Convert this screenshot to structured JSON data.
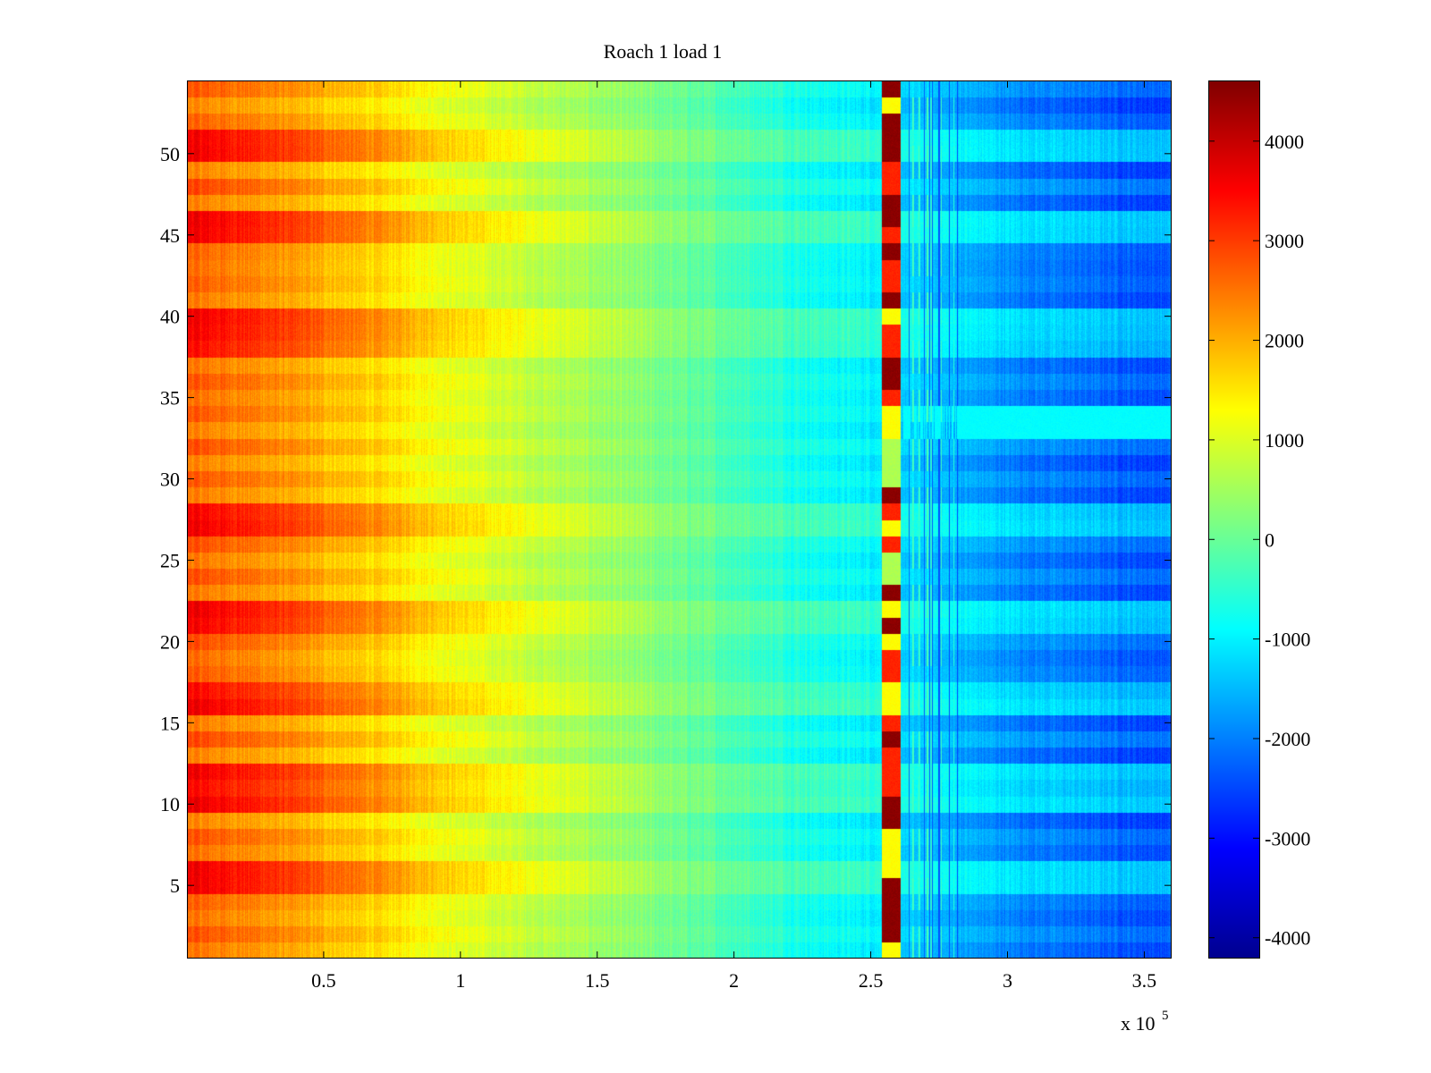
{
  "chart_data": {
    "type": "heatmap",
    "title": "Roach 1 load 1",
    "xlabel": "",
    "ylabel": "",
    "x_exponent_label": "x 10",
    "x_exponent_power": "5",
    "x_scale_note": "x values are in units of 10^5",
    "xlim": [
      0,
      3.6
    ],
    "ylim": [
      0.5,
      54.5
    ],
    "rows": 54,
    "x_ticks": [
      {
        "value": 0.5,
        "label": "0.5"
      },
      {
        "value": 1,
        "label": "1"
      },
      {
        "value": 1.5,
        "label": "1.5"
      },
      {
        "value": 2,
        "label": "2"
      },
      {
        "value": 2.5,
        "label": "2.5"
      },
      {
        "value": 3,
        "label": "3"
      },
      {
        "value": 3.5,
        "label": "3.5"
      }
    ],
    "y_ticks": [
      {
        "value": 5,
        "label": "5"
      },
      {
        "value": 10,
        "label": "10"
      },
      {
        "value": 15,
        "label": "15"
      },
      {
        "value": 20,
        "label": "20"
      },
      {
        "value": 25,
        "label": "25"
      },
      {
        "value": 30,
        "label": "30"
      },
      {
        "value": 35,
        "label": "35"
      },
      {
        "value": 40,
        "label": "40"
      },
      {
        "value": 45,
        "label": "45"
      },
      {
        "value": 50,
        "label": "50"
      }
    ],
    "colorbar": {
      "colormap": "jet",
      "range": [
        -4200,
        4600
      ],
      "ticks": [
        {
          "value": 4000,
          "label": "4000"
        },
        {
          "value": 3000,
          "label": "3000"
        },
        {
          "value": 2000,
          "label": "2000"
        },
        {
          "value": 1000,
          "label": "1000"
        },
        {
          "value": 0,
          "label": "0"
        },
        {
          "value": -1000,
          "label": "-1000"
        },
        {
          "value": -2000,
          "label": "-2000"
        },
        {
          "value": -3000,
          "label": "-3000"
        },
        {
          "value": -4000,
          "label": "-4000"
        }
      ]
    },
    "value_profile": {
      "x": [
        0,
        0.25,
        0.5,
        0.75,
        1.0,
        1.5,
        2.0,
        2.3,
        2.53,
        2.62,
        2.8,
        3.0,
        3.3,
        3.6
      ],
      "row_mean": [
        2600,
        2300,
        1900,
        1500,
        1050,
        450,
        -300,
        -800,
        -1000,
        -1300,
        -1600,
        -1900,
        -2200,
        -2400
      ]
    },
    "hot_rows": [
      5,
      6,
      10,
      11,
      12,
      16,
      17,
      21,
      22,
      27,
      28,
      38,
      39,
      40,
      45,
      46,
      50,
      51
    ],
    "anomaly_band": {
      "x_start": 2.54,
      "x_end": 2.61,
      "description": "column of alternating extreme values"
    },
    "striated_band": {
      "x_start": 2.64,
      "x_end": 2.82
    },
    "plateau_row": {
      "rows": [
        33,
        34
      ],
      "x_start": 2.62,
      "x_end": 3.6,
      "value": -900
    }
  }
}
